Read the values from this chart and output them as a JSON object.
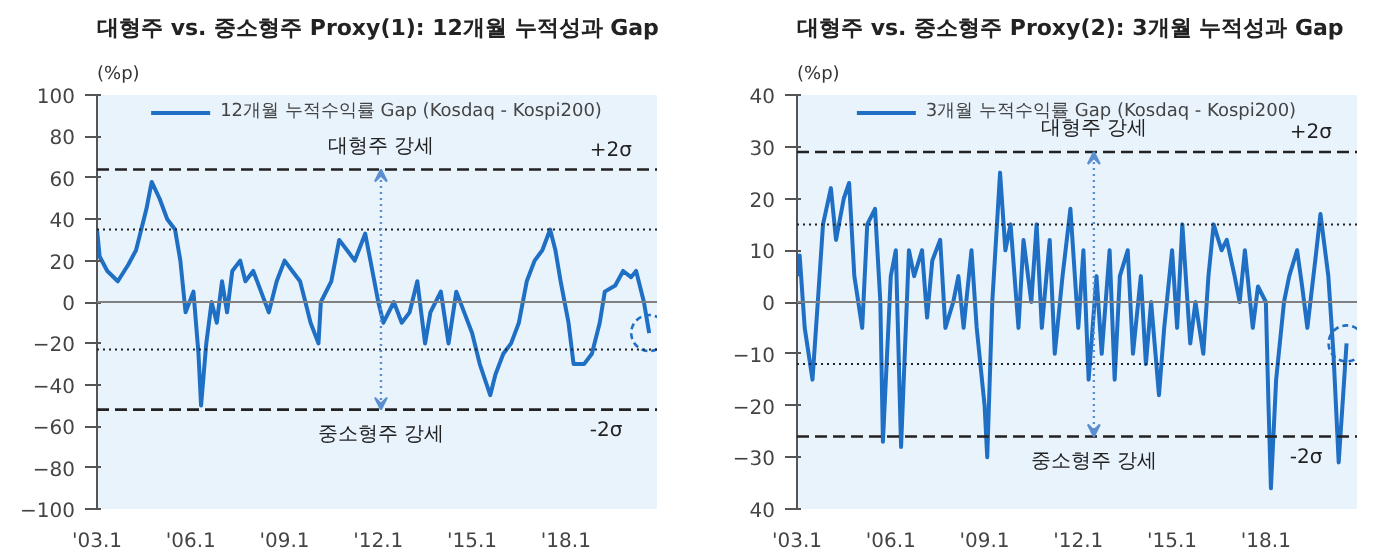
{
  "chart_data": [
    {
      "type": "line",
      "title": "대형주 vs. 중소형주 Proxy(1): 12개월 누적성과 Gap",
      "ylabel": "(%p)",
      "legend": "top",
      "xlim": [
        "2003-01",
        "2020-12"
      ],
      "ylim": [
        -100,
        100
      ],
      "xticks": [
        {
          "value": "2003-01",
          "label": "'03.1"
        },
        {
          "value": "2006-01",
          "label": "'06.1"
        },
        {
          "value": "2009-01",
          "label": "'09.1"
        },
        {
          "value": "2012-01",
          "label": "'12.1"
        },
        {
          "value": "2015-01",
          "label": "'15.1"
        },
        {
          "value": "2018-01",
          "label": "'18.1"
        }
      ],
      "yticks": [
        -100,
        -80,
        -60,
        -40,
        -20,
        0,
        20,
        40,
        60,
        80,
        100
      ],
      "x": [
        "2003-01",
        "2003-02",
        "2003-05",
        "2003-09",
        "2004-01",
        "2004-04",
        "2004-08",
        "2004-10",
        "2005-01",
        "2005-04",
        "2005-07",
        "2005-09",
        "2005-11",
        "2006-02",
        "2006-04",
        "2006-05",
        "2006-07",
        "2006-09",
        "2006-11",
        "2007-01",
        "2007-03",
        "2007-05",
        "2007-08",
        "2007-10",
        "2008-01",
        "2008-04",
        "2008-07",
        "2008-10",
        "2009-01",
        "2009-04",
        "2009-07",
        "2009-09",
        "2009-11",
        "2010-02",
        "2010-03",
        "2010-07",
        "2010-10",
        "2011-01",
        "2011-04",
        "2011-08",
        "2011-10",
        "2012-01",
        "2012-03",
        "2012-07",
        "2012-10",
        "2013-01",
        "2013-04",
        "2013-07",
        "2013-09",
        "2014-01",
        "2014-04",
        "2014-07",
        "2014-10",
        "2015-01",
        "2015-04",
        "2015-08",
        "2015-10",
        "2016-01",
        "2016-04",
        "2016-07",
        "2016-10",
        "2017-01",
        "2017-04",
        "2017-07",
        "2017-09",
        "2017-11",
        "2018-02",
        "2018-04",
        "2018-08",
        "2018-11",
        "2019-02",
        "2019-04",
        "2019-08",
        "2019-11",
        "2020-02",
        "2020-04",
        "2020-07",
        "2020-09"
      ],
      "series": [
        {
          "name": "12개월 누적수익률 Gap (Kosdaq - Kospi200)",
          "color": "#1f6fc5",
          "values": [
            35,
            22,
            15,
            10,
            18,
            25,
            45,
            58,
            50,
            40,
            35,
            20,
            -5,
            5,
            -25,
            -50,
            -20,
            0,
            -10,
            10,
            -5,
            15,
            20,
            10,
            15,
            5,
            -5,
            10,
            20,
            15,
            10,
            0,
            -10,
            -20,
            0,
            10,
            30,
            25,
            20,
            33,
            20,
            0,
            -10,
            0,
            -10,
            -5,
            10,
            -20,
            -5,
            5,
            -20,
            5,
            -5,
            -15,
            -30,
            -45,
            -35,
            -25,
            -20,
            -10,
            10,
            20,
            25,
            35,
            25,
            10,
            -10,
            -30,
            -30,
            -25,
            -10,
            5,
            8,
            15,
            12,
            15,
            0,
            -15
          ]
        }
      ],
      "ref_lines": [
        {
          "axis": "y",
          "value": 0,
          "color": "#808080",
          "line_style": "solid"
        },
        {
          "axis": "y",
          "value": 64,
          "label": "+2σ",
          "color": "#222222",
          "line_style": "dashed"
        },
        {
          "axis": "y",
          "value": 35,
          "color": "#222222",
          "line_style": "dotted"
        },
        {
          "axis": "y",
          "value": -23,
          "color": "#222222",
          "line_style": "dotted"
        },
        {
          "axis": "y",
          "value": -52,
          "label": "-2σ",
          "color": "#222222",
          "line_style": "dashed"
        }
      ],
      "annotations": [
        {
          "text": "대형주 강세",
          "x": "2012-02",
          "y": 64
        },
        {
          "text": "중소형주 강세",
          "x": "2012-02",
          "y": -52
        }
      ]
    },
    {
      "type": "line",
      "title": "대형주 vs. 중소형주 Proxy(2): 3개월 누적성과 Gap",
      "ylabel": "(%p)",
      "legend": "top",
      "xlim": [
        "2003-01",
        "2020-12"
      ],
      "ylim": [
        -40,
        40
      ],
      "xticks": [
        {
          "value": "2003-01",
          "label": "'03.1"
        },
        {
          "value": "2006-01",
          "label": "'06.1"
        },
        {
          "value": "2009-01",
          "label": "'09.1"
        },
        {
          "value": "2012-01",
          "label": "'12.1"
        },
        {
          "value": "2015-01",
          "label": "'15.1"
        },
        {
          "value": "2018-01",
          "label": "'18.1"
        }
      ],
      "yticks": [
        {
          "value": -40,
          "label": "40"
        },
        -30,
        -20,
        -10,
        0,
        10,
        20,
        30,
        40
      ],
      "x": [
        "2003-01",
        "2003-02",
        "2003-04",
        "2003-07",
        "2003-09",
        "2003-11",
        "2004-02",
        "2004-04",
        "2004-07",
        "2004-09",
        "2004-11",
        "2005-02",
        "2005-04",
        "2005-07",
        "2005-09",
        "2005-10",
        "2006-01",
        "2006-03",
        "2006-05",
        "2006-08",
        "2006-10",
        "2007-01",
        "2007-03",
        "2007-05",
        "2007-08",
        "2007-10",
        "2008-01",
        "2008-03",
        "2008-05",
        "2008-08",
        "2008-10",
        "2009-01",
        "2009-02",
        "2009-04",
        "2009-07",
        "2009-09",
        "2009-11",
        "2010-02",
        "2010-04",
        "2010-07",
        "2010-09",
        "2010-11",
        "2011-02",
        "2011-04",
        "2011-07",
        "2011-10",
        "2012-01",
        "2012-03",
        "2012-05",
        "2012-08",
        "2012-10",
        "2013-01",
        "2013-03",
        "2013-05",
        "2013-08",
        "2013-10",
        "2014-01",
        "2014-03",
        "2014-05",
        "2014-08",
        "2014-10",
        "2015-01",
        "2015-03",
        "2015-05",
        "2015-08",
        "2015-10",
        "2016-01",
        "2016-03",
        "2016-05",
        "2016-08",
        "2016-10",
        "2017-01",
        "2017-03",
        "2017-05",
        "2017-08",
        "2017-10",
        "2018-01",
        "2018-02",
        "2018-03",
        "2018-05",
        "2018-08",
        "2018-10",
        "2019-01",
        "2019-03",
        "2019-05",
        "2019-08",
        "2019-10",
        "2020-01",
        "2020-03",
        "2020-05",
        "2020-08"
      ],
      "series": [
        {
          "name": "3개월 누적수익률 Gap (Kosdaq - Kospi200)",
          "color": "#1f6fc5",
          "values": [
            5,
            9,
            -5,
            -15,
            0,
            15,
            22,
            12,
            20,
            23,
            5,
            -5,
            15,
            18,
            0,
            -27,
            5,
            10,
            -28,
            10,
            5,
            10,
            -3,
            8,
            12,
            -5,
            0,
            5,
            -5,
            10,
            -5,
            -20,
            -30,
            0,
            25,
            10,
            15,
            -5,
            12,
            0,
            15,
            -5,
            12,
            -10,
            5,
            18,
            -5,
            10,
            -15,
            5,
            -10,
            10,
            -15,
            5,
            10,
            -10,
            5,
            -12,
            0,
            -18,
            -5,
            10,
            -5,
            15,
            -8,
            0,
            -10,
            5,
            15,
            10,
            12,
            5,
            0,
            10,
            -5,
            3,
            0,
            -20,
            -36,
            -15,
            0,
            5,
            10,
            3,
            -5,
            8,
            17,
            5,
            -10,
            -31,
            -8
          ]
        }
      ],
      "ref_lines": [
        {
          "axis": "y",
          "value": 0,
          "color": "#808080",
          "line_style": "solid"
        },
        {
          "axis": "y",
          "value": 29,
          "label": "+2σ",
          "color": "#222222",
          "line_style": "dashed"
        },
        {
          "axis": "y",
          "value": 15,
          "color": "#222222",
          "line_style": "dotted"
        },
        {
          "axis": "y",
          "value": -12,
          "color": "#222222",
          "line_style": "dotted"
        },
        {
          "axis": "y",
          "value": -26,
          "label": "-2σ",
          "color": "#222222",
          "line_style": "dashed"
        }
      ],
      "annotations": [
        {
          "text": "대형주 강세",
          "x": "2012-07",
          "y": 29
        },
        {
          "text": "중소형주 강세",
          "x": "2012-07",
          "y": -26
        }
      ]
    }
  ]
}
